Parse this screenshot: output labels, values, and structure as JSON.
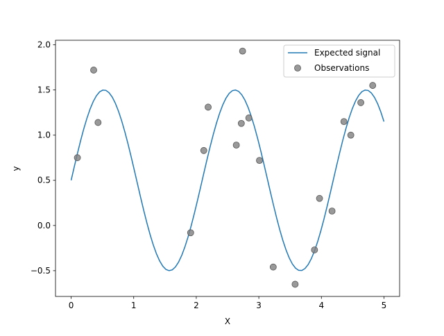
{
  "chart_data": {
    "type": "line+scatter",
    "title": "",
    "xlabel": "X",
    "ylabel": "y",
    "xlim": [
      -0.25,
      5.25
    ],
    "ylim": [
      -0.785,
      2.05
    ],
    "xticks": [
      0,
      1,
      2,
      3,
      4,
      5
    ],
    "xtick_labels": [
      "0",
      "1",
      "2",
      "3",
      "4",
      "5"
    ],
    "yticks": [
      -0.5,
      0.0,
      0.5,
      1.0,
      1.5,
      2.0
    ],
    "ytick_labels": [
      "−0.5",
      "0.0",
      "0.5",
      "1.0",
      "1.5",
      "2.0"
    ],
    "grid": false,
    "legend_position": "top-right",
    "series": [
      {
        "name": "Expected signal",
        "type": "line",
        "color": "#1f77b4",
        "formula": "0.5 + sin(3x)",
        "x_range": [
          0,
          5
        ],
        "samples": 100
      },
      {
        "name": "Observations",
        "type": "scatter",
        "color": "#808080",
        "x": [
          0.1,
          0.36,
          0.43,
          1.91,
          2.12,
          2.19,
          2.64,
          2.72,
          2.74,
          2.84,
          3.01,
          3.23,
          3.58,
          3.89,
          3.97,
          4.17,
          4.36,
          4.47,
          4.63,
          4.82
        ],
        "y": [
          0.75,
          1.72,
          1.14,
          -0.08,
          0.83,
          1.31,
          0.89,
          1.13,
          1.93,
          1.19,
          0.72,
          -0.46,
          -0.65,
          -0.27,
          0.3,
          0.16,
          1.15,
          1.0,
          1.36,
          1.55
        ]
      }
    ]
  }
}
